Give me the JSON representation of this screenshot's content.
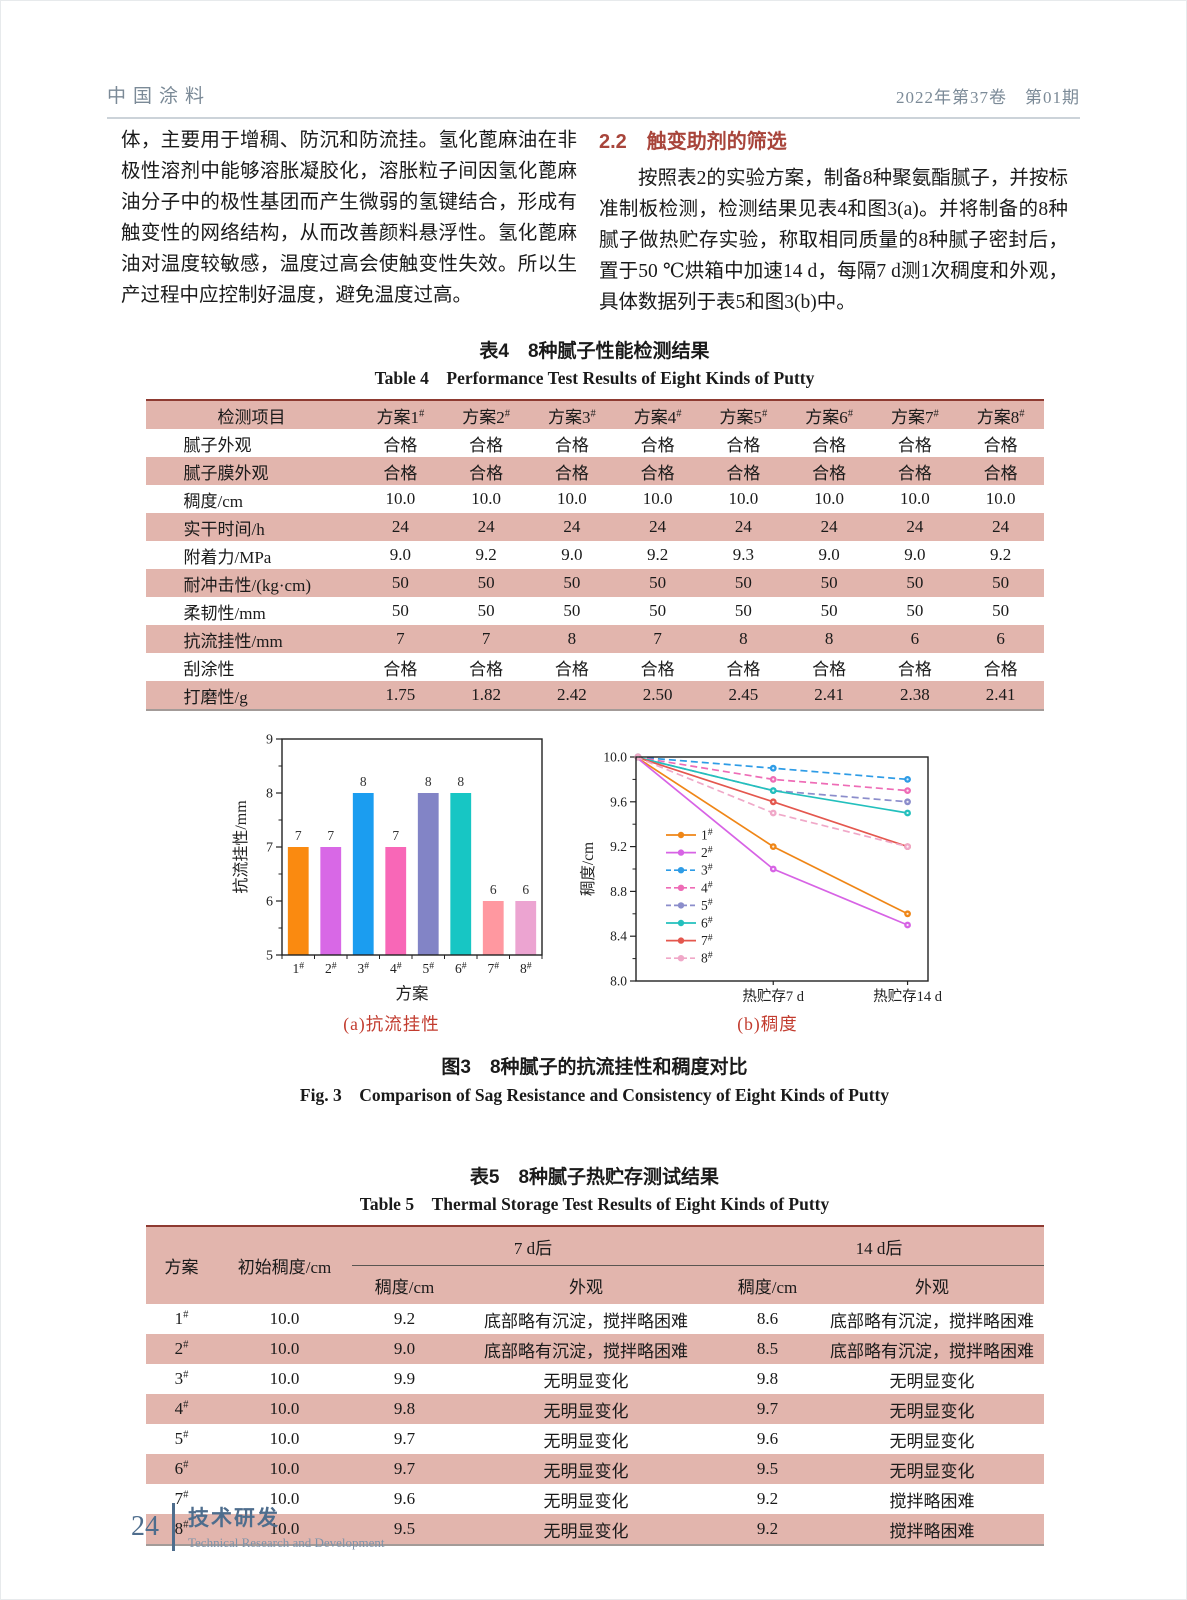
{
  "page_header": {
    "journal": "中国涂料",
    "issue": "2022年第37卷 第01期"
  },
  "intro": {
    "left_paragraph": "体，主要用于增稠、防沉和防流挂。氢化蓖麻油在非极性溶剂中能够溶胀凝胶化，溶胀粒子间因氢化蓖麻油分子中的极性基团而产生微弱的氢键结合，形成有触变性的网络结构，从而改善颜料悬浮性。氢化蓖麻油对温度较敏感，温度过高会使触变性失效。所以生产过程中应控制好温度，避免温度过高。",
    "section_heading": "2.2 触变助剂的筛选",
    "section_paragraph": "按照表2的实验方案，制备8种聚氨酯腻子，并按标准制板检测，检测结果见表4和图3(a)。并将制备的8种腻子做热贮存实验，称取相同质量的8种腻子密封后，置于50 ℃烘箱中加速14 d，每隔7 d测1次稠度和外观，具体数据列于表5和图3(b)中。"
  },
  "table4": {
    "title_cn": "表4　8种腻子性能检测结果",
    "title_en": "Table 4 Performance Test Results of Eight Kinds of Putty",
    "header": [
      "检测项目",
      "方案1#",
      "方案2#",
      "方案3#",
      "方案4#",
      "方案5#",
      "方案6#",
      "方案7#",
      "方案8#"
    ],
    "rows": [
      {
        "label": "腻子外观",
        "values": [
          "合格",
          "合格",
          "合格",
          "合格",
          "合格",
          "合格",
          "合格",
          "合格"
        ]
      },
      {
        "label": "腻子膜外观",
        "values": [
          "合格",
          "合格",
          "合格",
          "合格",
          "合格",
          "合格",
          "合格",
          "合格"
        ]
      },
      {
        "label": "稠度/cm",
        "values": [
          "10.0",
          "10.0",
          "10.0",
          "10.0",
          "10.0",
          "10.0",
          "10.0",
          "10.0"
        ]
      },
      {
        "label": "实干时间/h",
        "values": [
          "24",
          "24",
          "24",
          "24",
          "24",
          "24",
          "24",
          "24"
        ]
      },
      {
        "label": "附着力/MPa",
        "values": [
          "9.0",
          "9.2",
          "9.0",
          "9.2",
          "9.3",
          "9.0",
          "9.0",
          "9.2"
        ]
      },
      {
        "label": "耐冲击性/(kg·cm)",
        "values": [
          "50",
          "50",
          "50",
          "50",
          "50",
          "50",
          "50",
          "50"
        ]
      },
      {
        "label": "柔韧性/mm",
        "values": [
          "50",
          "50",
          "50",
          "50",
          "50",
          "50",
          "50",
          "50"
        ]
      },
      {
        "label": "抗流挂性/mm",
        "values": [
          "7",
          "7",
          "8",
          "7",
          "8",
          "8",
          "6",
          "6"
        ]
      },
      {
        "label": "刮涂性",
        "values": [
          "合格",
          "合格",
          "合格",
          "合格",
          "合格",
          "合格",
          "合格",
          "合格"
        ]
      },
      {
        "label": "打磨性/g",
        "values": [
          "1.75",
          "1.82",
          "2.42",
          "2.50",
          "2.45",
          "2.41",
          "2.38",
          "2.41"
        ]
      }
    ]
  },
  "figure3": {
    "caption_a": "(a)抗流挂性",
    "caption_b": "(b)稠度",
    "caption_cn": "图3　8种腻子的抗流挂性和稠度对比",
    "caption_en": "Fig. 3 Comparison of Sag Resistance and Consistency of Eight Kinds of Putty"
  },
  "chart_data": [
    {
      "type": "bar",
      "categories": [
        "1#",
        "2#",
        "3#",
        "4#",
        "5#",
        "6#",
        "7#",
        "8#"
      ],
      "values": [
        7,
        7,
        8,
        7,
        8,
        8,
        6,
        6
      ],
      "bar_colors": [
        "#fa8a10",
        "#d868e6",
        "#1b9df0",
        "#f867b7",
        "#8284c6",
        "#17c6c4",
        "#ff98a0",
        "#eca4d1"
      ],
      "xlabel": "方案",
      "ylabel": "抗流挂性/mm",
      "ylim": [
        5,
        9
      ],
      "yticks": [
        5,
        6,
        7,
        8,
        9
      ],
      "data_labels": true,
      "grid": false
    },
    {
      "type": "line",
      "x": [
        0,
        7,
        14
      ],
      "x_labels": [
        "",
        "热贮存7 d",
        "热贮存14 d"
      ],
      "series": [
        {
          "name": "1#",
          "values": [
            10.0,
            9.2,
            8.6
          ],
          "color": "#ef8617",
          "dash": false
        },
        {
          "name": "2#",
          "values": [
            10.0,
            9.0,
            8.5
          ],
          "color": "#d763e5",
          "dash": false
        },
        {
          "name": "3#",
          "values": [
            10.0,
            9.9,
            9.8
          ],
          "color": "#2e9ce6",
          "dash": true
        },
        {
          "name": "4#",
          "values": [
            10.0,
            9.8,
            9.7
          ],
          "color": "#ee6cb6",
          "dash": true
        },
        {
          "name": "5#",
          "values": [
            10.0,
            9.7,
            9.6
          ],
          "color": "#8b8dcb",
          "dash": true
        },
        {
          "name": "6#",
          "values": [
            10.0,
            9.7,
            9.5
          ],
          "color": "#23c0bd",
          "dash": false
        },
        {
          "name": "7#",
          "values": [
            10.0,
            9.6,
            9.2
          ],
          "color": "#e4574e",
          "dash": false
        },
        {
          "name": "8#",
          "values": [
            10.0,
            9.5,
            9.2
          ],
          "color": "#f0a8c8",
          "dash": true
        }
      ],
      "ylabel": "稠度/cm",
      "ylim": [
        8.0,
        10.0
      ],
      "yticks": [
        8.0,
        8.4,
        8.8,
        9.2,
        9.6,
        10.0
      ],
      "legend_position": "left-middle",
      "grid": false
    }
  ],
  "table5": {
    "title_cn": "表5　8种腻子热贮存测试结果",
    "title_en": "Table 5 Thermal Storage Test Results of Eight Kinds of Putty",
    "col_scheme": "方案",
    "col_initial": "初始稠度/cm",
    "group_7d": "7 d后",
    "group_14d": "14 d后",
    "col_consistency": "稠度/cm",
    "col_appearance": "外观",
    "rows": [
      {
        "scheme": "1#",
        "initial": "10.0",
        "c7": "9.2",
        "a7": "底部略有沉淀，搅拌略困难",
        "c14": "8.6",
        "a14": "底部略有沉淀，搅拌略困难"
      },
      {
        "scheme": "2#",
        "initial": "10.0",
        "c7": "9.0",
        "a7": "底部略有沉淀，搅拌略困难",
        "c14": "8.5",
        "a14": "底部略有沉淀，搅拌略困难"
      },
      {
        "scheme": "3#",
        "initial": "10.0",
        "c7": "9.9",
        "a7": "无明显变化",
        "c14": "9.8",
        "a14": "无明显变化"
      },
      {
        "scheme": "4#",
        "initial": "10.0",
        "c7": "9.8",
        "a7": "无明显变化",
        "c14": "9.7",
        "a14": "无明显变化"
      },
      {
        "scheme": "5#",
        "initial": "10.0",
        "c7": "9.7",
        "a7": "无明显变化",
        "c14": "9.6",
        "a14": "无明显变化"
      },
      {
        "scheme": "6#",
        "initial": "10.0",
        "c7": "9.7",
        "a7": "无明显变化",
        "c14": "9.5",
        "a14": "无明显变化"
      },
      {
        "scheme": "7#",
        "initial": "10.0",
        "c7": "9.6",
        "a7": "无明显变化",
        "c14": "9.2",
        "a14": "搅拌略困难"
      },
      {
        "scheme": "8#",
        "initial": "10.0",
        "c7": "9.5",
        "a7": "无明显变化",
        "c14": "9.2",
        "a14": "搅拌略困难"
      }
    ]
  },
  "footer": {
    "page_number": "24",
    "column_cn": "技术研发",
    "column_en": "Technical Research and Development"
  },
  "colors": {
    "table_stripe": "#e2b5ad",
    "table_top_border": "#8e3a31",
    "section_heading": "#a8453b",
    "figure_caption_red": "#c23b2e",
    "footer_blue": "#4e6d8d"
  }
}
